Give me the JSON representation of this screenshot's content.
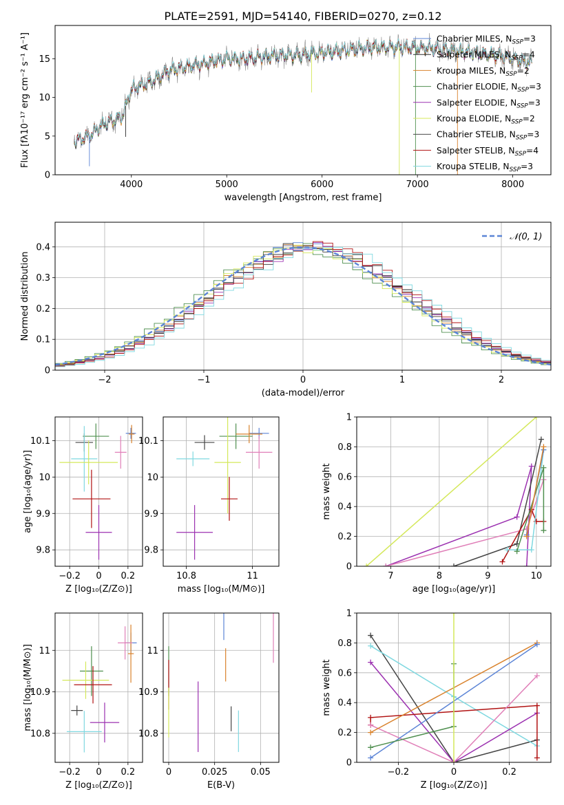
{
  "title": "PLATE=2591, MJD=54140, FIBERID=0270, z=0.12",
  "colors": {
    "chabrier_miles": "#5b84d6",
    "salpeter_miles": "#2b2b2b",
    "kroupa_miles": "#d9822b",
    "chabrier_elodie": "#4f8f4f",
    "salpeter_elodie": "#9b30b0",
    "kroupa_elodie": "#d4e85a",
    "chabrier_stelib": "#444444",
    "salpeter_stelib": "#b01010",
    "kroupa_stelib": "#7fd8e0",
    "pink": "#e07fb8",
    "gaussian": "#5b84d6"
  },
  "chart_data": [
    {
      "type": "line",
      "xlabel": "wavelength [Angstrom, rest frame]",
      "ylabel": "Flux [fλ10⁻¹⁷ erg cm⁻² s⁻¹ A⁻¹]",
      "xlim": [
        3200,
        8400
      ],
      "ylim": [
        0,
        19.3
      ],
      "xticks": [
        4000,
        5000,
        6000,
        7000,
        8000
      ],
      "yticks": [
        0,
        5,
        10,
        15
      ],
      "spectrum_range": [
        3400,
        8200
      ],
      "spectrum_anchor_x": [
        3400,
        3550,
        3700,
        3900,
        4000,
        4200,
        4400,
        4600,
        4800,
        5000,
        5200,
        5400,
        5600,
        5800,
        6000,
        6200,
        6400,
        6600,
        6800,
        7000,
        7200,
        7400,
        7600,
        7800,
        8000,
        8200
      ],
      "spectrum_anchor_y": [
        4.3,
        5.0,
        6.5,
        7.5,
        11.0,
        12.0,
        13.5,
        14.0,
        14.5,
        15.0,
        15.0,
        15.3,
        15.5,
        15.5,
        15.8,
        16.0,
        16.3,
        16.5,
        16.5,
        16.5,
        16.3,
        16.0,
        15.8,
        15.5,
        15.0,
        14.5
      ],
      "legend_placement": "upper right",
      "legend": [
        {
          "label": "Chabrier MILES, N",
          "sub": "SSP",
          "suffix": "=3",
          "color_key": "chabrier_miles"
        },
        {
          "label": "Salpeter MILES, N",
          "sub": "SSP",
          "suffix": "=4",
          "color_key": "salpeter_miles"
        },
        {
          "label": "Kroupa MILES, N",
          "sub": "SSP",
          "suffix": "=2",
          "color_key": "kroupa_miles"
        },
        {
          "label": "Chabrier ELODIE, N",
          "sub": "SSP",
          "suffix": "=3",
          "color_key": "chabrier_elodie"
        },
        {
          "label": "Salpeter ELODIE, N",
          "sub": "SSP",
          "suffix": "=3",
          "color_key": "salpeter_elodie"
        },
        {
          "label": "Kroupa ELODIE, N",
          "sub": "SSP",
          "suffix": "=2",
          "color_key": "kroupa_elodie"
        },
        {
          "label": "Chabrier STELIB, N",
          "sub": "SSP",
          "suffix": "=3",
          "color_key": "chabrier_stelib"
        },
        {
          "label": "Salpeter STELIB, N",
          "sub": "SSP",
          "suffix": "=4",
          "color_key": "salpeter_stelib"
        },
        {
          "label": "Kroupa STELIB, N",
          "sub": "SSP",
          "suffix": "=3",
          "color_key": "kroupa_stelib"
        }
      ]
    },
    {
      "type": "histogram",
      "xlabel": "(data-model)/error",
      "ylabel": "Normed distribution",
      "xlim": [
        -2.5,
        2.5
      ],
      "ylim": [
        0,
        0.48
      ],
      "xticks": [
        -2,
        -1,
        0,
        1,
        2
      ],
      "yticks": [
        0.0,
        0.1,
        0.2,
        0.3,
        0.4
      ],
      "grid": true,
      "legend_placement": "upper right",
      "legend_label": "𝒩(0, 1)"
    },
    {
      "type": "errorbar",
      "xlabel": "Z [log₁₀(Z/Z⊙)]",
      "ylabel": "age  [log₁₀(age/yr)]",
      "xlim": [
        -0.3,
        0.3
      ],
      "ylim": [
        9.755,
        10.165
      ],
      "xticks": [
        -0.2,
        0.0,
        0.2
      ],
      "yticks": [
        9.8,
        9.9,
        10.0,
        10.1
      ],
      "grid": true,
      "points": [
        {
          "x": -0.02,
          "y": 10.112,
          "xerr": 0.09,
          "yerr": 0.035,
          "color_key": "chabrier_elodie"
        },
        {
          "x": 0.22,
          "y": 10.12,
          "xerr": 0.035,
          "yerr": 0.015,
          "color_key": "chabrier_miles"
        },
        {
          "x": 0.225,
          "y": 10.118,
          "xerr": 0.02,
          "yerr": 0.025,
          "color_key": "kroupa_miles"
        },
        {
          "x": 0.15,
          "y": 10.068,
          "xerr": 0.04,
          "yerr": 0.045,
          "color_key": "pink"
        },
        {
          "x": -0.1,
          "y": 10.095,
          "xerr": 0.06,
          "yerr": 0.025,
          "color_key": "chabrier_stelib"
        },
        {
          "x": -0.1,
          "y": 10.05,
          "xerr": 0.09,
          "yerr": 0.09,
          "color_key": "kroupa_stelib"
        },
        {
          "x": -0.07,
          "y": 10.04,
          "xerr": 0.2,
          "yerr": 0.06,
          "color_key": "kroupa_elodie"
        },
        {
          "x": -0.05,
          "y": 9.94,
          "xerr": 0.13,
          "yerr": 0.08,
          "color_key": "salpeter_stelib"
        },
        {
          "x": 0.0,
          "y": 9.848,
          "xerr": 0.09,
          "yerr": 0.075,
          "color_key": "salpeter_elodie"
        }
      ]
    },
    {
      "type": "errorbar",
      "xlabel": "mass [log₁₀(M/M⊙)]",
      "ylabel": "",
      "xlim": [
        10.73,
        11.08
      ],
      "ylim": [
        9.755,
        10.165
      ],
      "xticks": [
        10.8,
        11.0
      ],
      "yticks": [
        9.8,
        9.9,
        10.0,
        10.1
      ],
      "grid": true,
      "points": [
        {
          "x": 10.95,
          "y": 10.112,
          "xerr": 0.05,
          "yerr": 0.035,
          "color_key": "chabrier_elodie"
        },
        {
          "x": 11.02,
          "y": 10.12,
          "xerr": 0.03,
          "yerr": 0.015,
          "color_key": "chabrier_miles"
        },
        {
          "x": 10.99,
          "y": 10.118,
          "xerr": 0.04,
          "yerr": 0.025,
          "color_key": "kroupa_miles"
        },
        {
          "x": 11.02,
          "y": 10.068,
          "xerr": 0.04,
          "yerr": 0.045,
          "color_key": "pink"
        },
        {
          "x": 10.855,
          "y": 10.095,
          "xerr": 0.03,
          "yerr": 0.02,
          "color_key": "chabrier_stelib"
        },
        {
          "x": 10.82,
          "y": 10.05,
          "xerr": 0.05,
          "yerr": 0.02,
          "color_key": "kroupa_stelib"
        },
        {
          "x": 10.925,
          "y": 10.04,
          "xerr": 0.04,
          "yerr": 0.14,
          "color_key": "kroupa_elodie"
        },
        {
          "x": 10.93,
          "y": 9.94,
          "xerr": 0.025,
          "yerr": 0.06,
          "color_key": "salpeter_stelib"
        },
        {
          "x": 10.825,
          "y": 9.848,
          "xerr": 0.055,
          "yerr": 0.075,
          "color_key": "salpeter_elodie"
        }
      ]
    },
    {
      "type": "line",
      "xlabel": "age  [log₁₀(age/yr)]",
      "ylabel": "mass weight",
      "xlim": [
        6.3,
        10.3
      ],
      "ylim": [
        0,
        1
      ],
      "xticks": [
        7,
        8,
        9,
        10
      ],
      "yticks": [
        0.0,
        0.2,
        0.4,
        0.6,
        0.8,
        1.0
      ],
      "grid": true,
      "series": [
        {
          "color_key": "kroupa_elodie",
          "x": [
            6.5,
            10.0
          ],
          "y": [
            0.0,
            1.0
          ]
        },
        {
          "color_key": "salpeter_elodie",
          "x": [
            6.9,
            9.6,
            9.9,
            9.8
          ],
          "y": [
            0.0,
            0.33,
            0.67,
            0.0
          ]
        },
        {
          "color_key": "chabrier_stelib",
          "x": [
            8.3,
            9.6,
            10.1
          ],
          "y": [
            0.0,
            0.15,
            0.85
          ]
        },
        {
          "color_key": "pink",
          "x": [
            6.9,
            9.8,
            10.15
          ],
          "y": [
            0.0,
            0.25,
            0.58
          ]
        },
        {
          "color_key": "salpeter_stelib",
          "x": [
            9.3,
            9.9,
            10.0,
            10.15
          ],
          "y": [
            0.03,
            0.38,
            0.3,
            0.3
          ]
        },
        {
          "color_key": "kroupa_stelib",
          "x": [
            9.4,
            9.9,
            10.15
          ],
          "y": [
            0.11,
            0.11,
            0.78
          ]
        },
        {
          "color_key": "chabrier_elodie",
          "x": [
            9.6,
            10.15,
            10.15
          ],
          "y": [
            0.1,
            0.66,
            0.24
          ]
        },
        {
          "color_key": "chabrier_miles",
          "x": [
            9.8,
            10.15
          ],
          "y": [
            0.21,
            0.78
          ]
        },
        {
          "color_key": "kroupa_miles",
          "x": [
            9.8,
            10.15
          ],
          "y": [
            0.2,
            0.8
          ]
        }
      ]
    },
    {
      "type": "errorbar",
      "xlabel": "Z [log₁₀(Z/Z⊙)]",
      "ylabel": "mass [log₁₀(M/M⊙)]",
      "xlim": [
        -0.3,
        0.3
      ],
      "ylim": [
        10.73,
        11.09
      ],
      "xticks": [
        -0.2,
        0.0,
        0.2
      ],
      "yticks": [
        10.8,
        10.9,
        11.0
      ],
      "grid": true,
      "points": [
        {
          "x": -0.05,
          "y": 10.95,
          "xerr": 0.08,
          "yerr": 0.06,
          "color_key": "chabrier_elodie"
        },
        {
          "x": 0.22,
          "y": 11.018,
          "xerr": 0.04,
          "yerr": 0.025,
          "color_key": "chabrier_miles"
        },
        {
          "x": 0.22,
          "y": 10.992,
          "xerr": 0.02,
          "yerr": 0.07,
          "color_key": "kroupa_miles"
        },
        {
          "x": 0.18,
          "y": 11.018,
          "xerr": 0.05,
          "yerr": 0.04,
          "color_key": "pink"
        },
        {
          "x": -0.15,
          "y": 10.855,
          "xerr": 0.04,
          "yerr": 0.012,
          "color_key": "chabrier_stelib"
        },
        {
          "x": -0.1,
          "y": 10.804,
          "xerr": 0.12,
          "yerr": 0.05,
          "color_key": "kroupa_stelib"
        },
        {
          "x": -0.09,
          "y": 10.928,
          "xerr": 0.16,
          "yerr": 0.045,
          "color_key": "kroupa_elodie"
        },
        {
          "x": -0.04,
          "y": 10.917,
          "xerr": 0.13,
          "yerr": 0.045,
          "color_key": "salpeter_stelib"
        },
        {
          "x": 0.04,
          "y": 10.826,
          "xerr": 0.1,
          "yerr": 0.048,
          "color_key": "salpeter_elodie"
        }
      ]
    },
    {
      "type": "errorbar",
      "xlabel": "E(B-V)",
      "ylabel": "",
      "xlim": [
        -0.003,
        0.06
      ],
      "ylim": [
        10.73,
        11.09
      ],
      "xticks": [
        0.0,
        0.025,
        0.05
      ],
      "yticks": [
        10.8,
        10.9,
        11.0
      ],
      "grid": true,
      "points": [
        {
          "x": 0.0,
          "y": 10.95,
          "xerr": 0,
          "yerr": 0.06,
          "color_key": "chabrier_elodie"
        },
        {
          "x": 0.0,
          "y": 10.917,
          "xerr": 0,
          "yerr": 0.06,
          "color_key": "salpeter_stelib"
        },
        {
          "x": 0.0,
          "y": 10.85,
          "xerr": 0,
          "yerr": 0.06,
          "color_key": "kroupa_elodie"
        },
        {
          "x": 0.016,
          "y": 10.84,
          "xerr": 0,
          "yerr": 0.085,
          "color_key": "salpeter_elodie"
        },
        {
          "x": 0.03,
          "y": 11.085,
          "xerr": 0,
          "yerr": 0.06,
          "color_key": "chabrier_miles"
        },
        {
          "x": 0.031,
          "y": 10.965,
          "xerr": 0,
          "yerr": 0.04,
          "color_key": "kroupa_miles"
        },
        {
          "x": 0.034,
          "y": 10.835,
          "xerr": 0,
          "yerr": 0.03,
          "color_key": "chabrier_stelib"
        },
        {
          "x": 0.038,
          "y": 10.805,
          "xerr": 0,
          "yerr": 0.05,
          "color_key": "kroupa_stelib"
        },
        {
          "x": 0.057,
          "y": 11.03,
          "xerr": 0,
          "yerr": 0.06,
          "color_key": "pink"
        }
      ]
    },
    {
      "type": "line",
      "xlabel": "Z [log₁₀(Z/Z⊙)]",
      "ylabel": "mass weight",
      "xlim": [
        -0.35,
        0.35
      ],
      "ylim": [
        0,
        1
      ],
      "xticks": [
        -0.2,
        0.0,
        0.2
      ],
      "yticks": [
        0.0,
        0.2,
        0.4,
        0.6,
        0.8,
        1.0
      ],
      "grid": true,
      "series": [
        {
          "color_key": "chabrier_stelib",
          "x": [
            -0.3,
            0.0,
            0.3
          ],
          "y": [
            0.85,
            0.0,
            0.15
          ]
        },
        {
          "color_key": "kroupa_stelib",
          "x": [
            -0.3,
            0.0,
            0.3
          ],
          "y": [
            0.78,
            0.44,
            0.11
          ]
        },
        {
          "color_key": "salpeter_elodie",
          "x": [
            -0.3,
            0.0,
            0.3
          ],
          "y": [
            0.67,
            0.0,
            0.33
          ]
        },
        {
          "color_key": "salpeter_stelib",
          "x": [
            -0.3,
            -0.3,
            0.3,
            0.3
          ],
          "y": [
            0.25,
            0.3,
            0.38,
            0.03
          ]
        },
        {
          "color_key": "pink",
          "x": [
            -0.3,
            0.0,
            0.3
          ],
          "y": [
            0.25,
            0.0,
            0.58
          ]
        },
        {
          "color_key": "kroupa_miles",
          "x": [
            -0.3,
            0.3
          ],
          "y": [
            0.2,
            0.8
          ]
        },
        {
          "color_key": "chabrier_miles",
          "x": [
            -0.3,
            0.3
          ],
          "y": [
            0.03,
            0.79
          ]
        },
        {
          "color_key": "chabrier_elodie",
          "x": [
            -0.3,
            0.0,
            0.0
          ],
          "y": [
            0.1,
            0.24,
            0.66
          ]
        },
        {
          "color_key": "kroupa_elodie",
          "x": [
            0.0,
            0.0
          ],
          "y": [
            0.0,
            1.0
          ]
        }
      ]
    }
  ]
}
